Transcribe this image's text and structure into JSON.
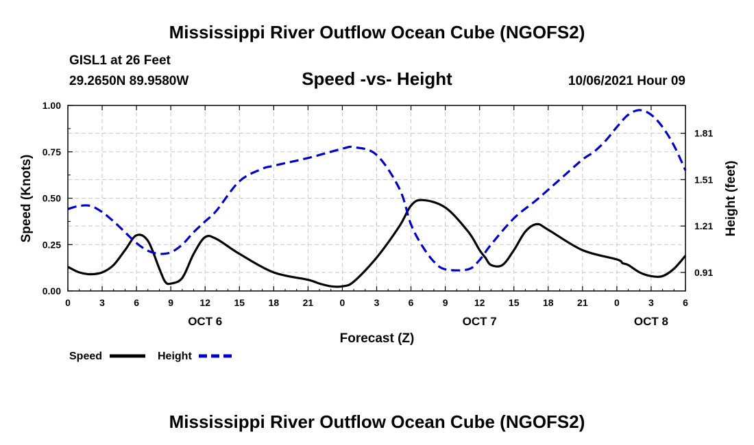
{
  "header": {
    "title": "Mississippi River Outflow Ocean Cube (NGOFS2)",
    "station": "GISL1 at 26 Feet",
    "coords": "29.2650N  89.9580W",
    "chart_title": "Speed -vs- Height",
    "datetime": "10/06/2021 Hour 09"
  },
  "footer": {
    "title": "Mississippi River Outflow Ocean Cube (NGOFS2)"
  },
  "legend": {
    "speed_label": "Speed",
    "height_label": "Height"
  },
  "colors": {
    "speed": "#000000",
    "height": "#0000cc",
    "grid": "#c8c8c8"
  },
  "chart_data": {
    "type": "line",
    "title": "Speed -vs- Height",
    "xlabel": "Forecast (Z)",
    "ylabel": "Speed (Knots)",
    "y2label": "Height (feet)",
    "xlim": [
      0,
      54
    ],
    "ylim": [
      0,
      1.0
    ],
    "y2lim": [
      0.79,
      1.99
    ],
    "x_ticks": [
      0,
      3,
      6,
      9,
      12,
      15,
      18,
      21,
      24,
      27,
      30,
      33,
      36,
      39,
      42,
      45,
      48,
      51,
      54
    ],
    "x_tick_labels": [
      "0",
      "3",
      "6",
      "9",
      "12",
      "15",
      "18",
      "21",
      "0",
      "3",
      "6",
      "9",
      "12",
      "15",
      "18",
      "21",
      "0",
      "3",
      "6"
    ],
    "date_labels": [
      {
        "x": 12,
        "label": "OCT 6"
      },
      {
        "x": 36,
        "label": "OCT 7"
      },
      {
        "x": 51,
        "label": "OCT 8"
      }
    ],
    "y_ticks": [
      0.0,
      0.25,
      0.5,
      0.75,
      1.0
    ],
    "y_tick_labels": [
      "0.00",
      "0.25",
      "0.50",
      "0.75",
      "1.00"
    ],
    "y2_ticks": [
      0.91,
      1.21,
      1.51,
      1.81
    ],
    "y2_tick_labels": [
      "0.91",
      "1.21",
      "1.51",
      "1.81"
    ],
    "grid": true,
    "series": [
      {
        "name": "Speed",
        "axis": "left",
        "style": "solid",
        "x": [
          0,
          1,
          2,
          3,
          4,
          5,
          6,
          7,
          8,
          8.5,
          9,
          10,
          11,
          12,
          13,
          15,
          18,
          21,
          22,
          23,
          24,
          25,
          27,
          29,
          30,
          31,
          33,
          35,
          36,
          36.5,
          37,
          38,
          39,
          40,
          41,
          42,
          45,
          48,
          48.5,
          49,
          50,
          51,
          52,
          53,
          54
        ],
        "values": [
          0.13,
          0.1,
          0.09,
          0.1,
          0.14,
          0.22,
          0.3,
          0.27,
          0.12,
          0.05,
          0.04,
          0.07,
          0.2,
          0.29,
          0.28,
          0.2,
          0.1,
          0.06,
          0.04,
          0.025,
          0.025,
          0.05,
          0.18,
          0.35,
          0.46,
          0.49,
          0.45,
          0.32,
          0.22,
          0.18,
          0.14,
          0.14,
          0.22,
          0.32,
          0.36,
          0.33,
          0.22,
          0.17,
          0.15,
          0.14,
          0.1,
          0.08,
          0.08,
          0.12,
          0.19
        ]
      },
      {
        "name": "Height",
        "axis": "right",
        "style": "dashed",
        "x": [
          0,
          1,
          2,
          3,
          4,
          5,
          6,
          7,
          8,
          9,
          10,
          11,
          12,
          13,
          15,
          17,
          18,
          21,
          24,
          25,
          27,
          29,
          30,
          31,
          32,
          33,
          35,
          36,
          37,
          39,
          41,
          43,
          45,
          46,
          47,
          48,
          49,
          50,
          51,
          52,
          53,
          54
        ],
        "values": [
          1.32,
          1.34,
          1.34,
          1.3,
          1.24,
          1.17,
          1.1,
          1.05,
          1.03,
          1.04,
          1.09,
          1.17,
          1.24,
          1.31,
          1.5,
          1.58,
          1.6,
          1.65,
          1.71,
          1.72,
          1.67,
          1.45,
          1.22,
          1.08,
          0.98,
          0.93,
          0.93,
          0.99,
          1.09,
          1.26,
          1.38,
          1.51,
          1.64,
          1.69,
          1.76,
          1.85,
          1.93,
          1.96,
          1.93,
          1.85,
          1.73,
          1.57
        ]
      }
    ]
  }
}
